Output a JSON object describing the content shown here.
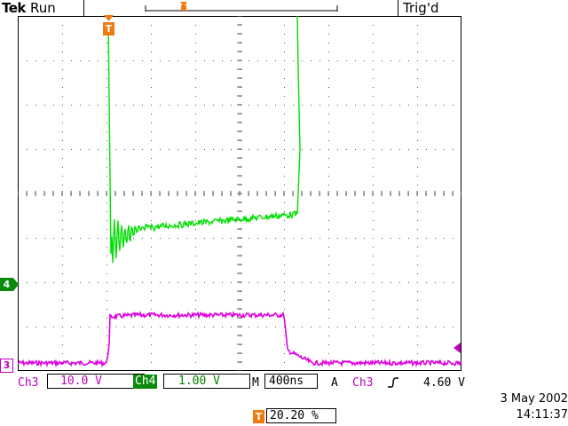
{
  "header": {
    "brand": "Tek",
    "status": "Run",
    "trigger_status": "Trig'd"
  },
  "markers": {
    "trigger_time": "T",
    "ch4": "4",
    "ch3": "3"
  },
  "readouts": {
    "ch3_label": "Ch3",
    "ch3_scale": "10.0 V",
    "ch4_label": "Ch4",
    "ch4_scale": "1.00 V",
    "timebase_label": "M",
    "timebase": "400ns",
    "trigger_mode": "A",
    "trigger_source": "Ch3",
    "trigger_slope_icon": "rising-edge-icon",
    "trigger_level": "4.60 V",
    "trigger_pos_label": "T",
    "trigger_position": "20.20 %",
    "date": "3 May 2002",
    "time": "14:11:37"
  },
  "colors": {
    "ch3": "#e000e0",
    "ch4": "#00e000",
    "trigger_marker": "#f07a10",
    "ch4_marker": "#0a8a0a"
  }
}
